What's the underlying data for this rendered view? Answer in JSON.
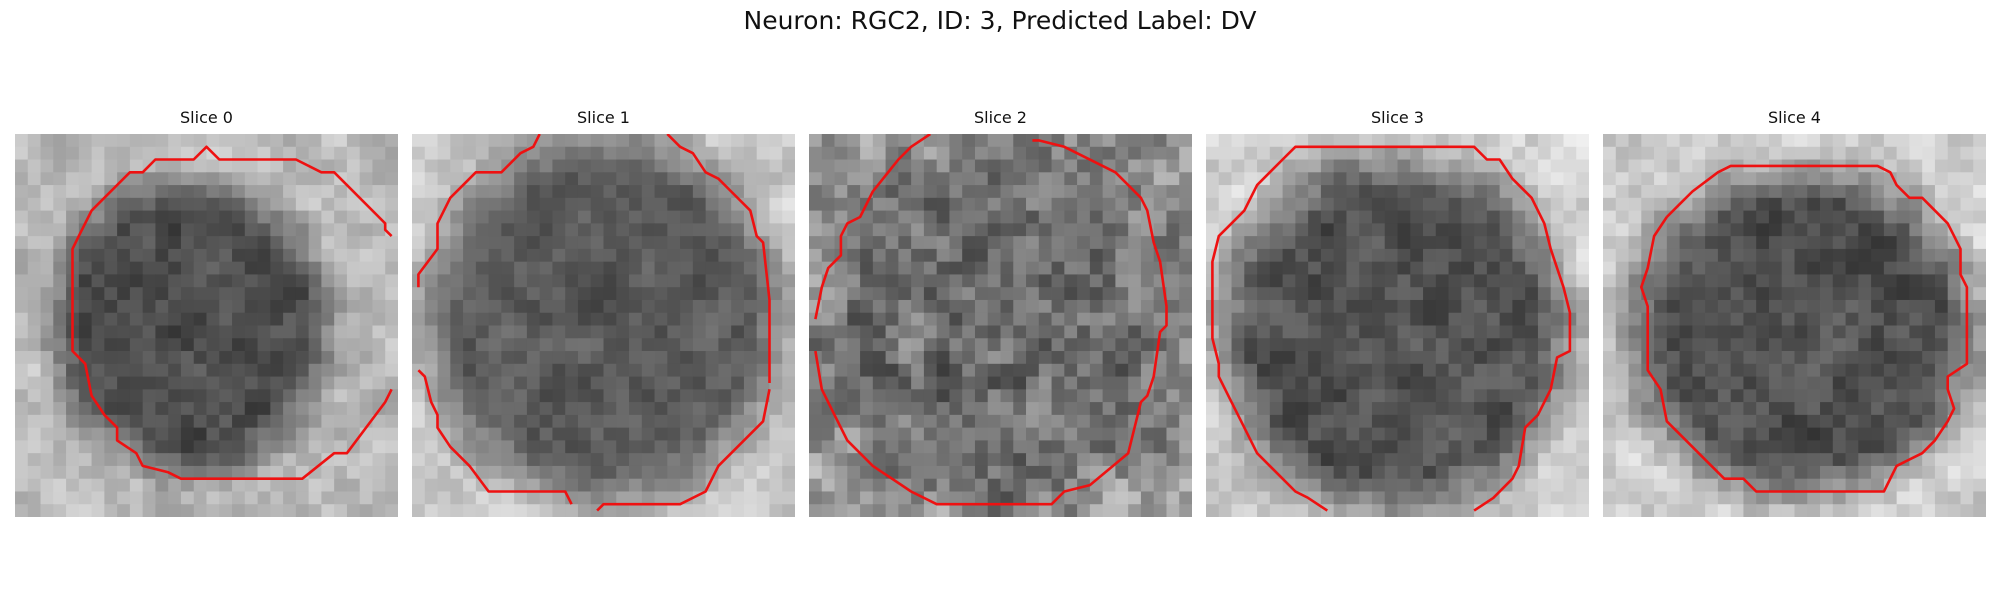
{
  "figure": {
    "title": "Neuron: RGC2, ID: 3, Predicted Label: DV",
    "contour_color": "#ee1111"
  },
  "panels": [
    {
      "title": "Slice 0"
    },
    {
      "title": "Slice 1"
    },
    {
      "title": "Slice 2"
    },
    {
      "title": "Slice 3"
    },
    {
      "title": "Slice 4"
    }
  ]
}
